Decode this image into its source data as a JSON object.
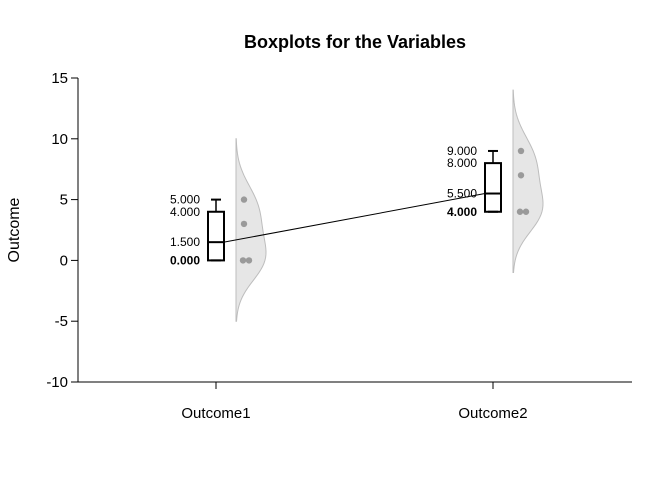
{
  "chart_data": {
    "type": "boxplot",
    "title": "Boxplots for the Variables",
    "xlabel": "",
    "ylabel": "Outcome",
    "ylim": [
      -10,
      15
    ],
    "yticks": [
      -10,
      -5,
      0,
      5,
      10,
      15
    ],
    "ytick_labels": [
      "-10",
      "-5",
      "0",
      "5",
      "10",
      "15"
    ],
    "categories": [
      "Outcome1",
      "Outcome2"
    ],
    "groups": [
      {
        "name": "Outcome1",
        "min": 0,
        "q1": 0,
        "median": 1.5,
        "q3": 4,
        "max": 5,
        "points": [
          5,
          3,
          0,
          0
        ],
        "labels": [
          "5.000",
          "4.000",
          "1.500",
          "0.000"
        ],
        "density_range": [
          -5,
          10
        ]
      },
      {
        "name": "Outcome2",
        "min": 4,
        "q1": 4,
        "median": 5.5,
        "q3": 8,
        "max": 9,
        "points": [
          9,
          7,
          4,
          4
        ],
        "labels": [
          "9.000",
          "8.000",
          "5.500",
          "4.000"
        ],
        "density_range": [
          -1,
          14
        ]
      }
    ],
    "connect_medians": true,
    "grid": false,
    "colors": {
      "box": "#000000",
      "points": "#8c8c8c",
      "density_fill": "#e6e6e6",
      "density_stroke": "#bdbdbd"
    }
  }
}
